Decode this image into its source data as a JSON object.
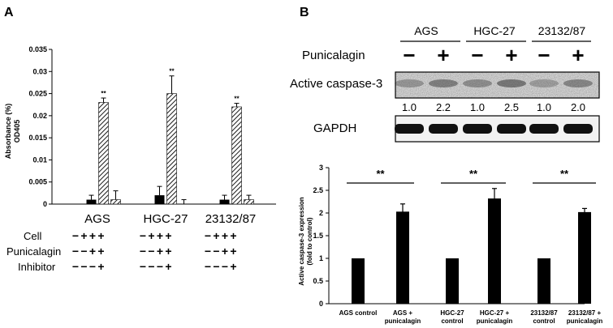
{
  "panels": {
    "a_label": "A",
    "b_label": "B"
  },
  "panel_a": {
    "yaxis": {
      "label_line1": "Absorbance (%)",
      "label_line2": "OD405",
      "ticks": [
        "0",
        "0.005",
        "0.01",
        "0.015",
        "0.02",
        "0.025",
        "0.03",
        "0.035"
      ]
    },
    "row_labels": [
      "Cell",
      "Punicalagin",
      "Inhibitor"
    ],
    "sign_matrix": [
      [
        "−",
        "+",
        "+",
        "+"
      ],
      [
        "−",
        "−",
        "+",
        "+"
      ],
      [
        "−",
        "−",
        "−",
        "+"
      ]
    ]
  },
  "western": {
    "cell_lines": [
      "AGS",
      "HGC-27",
      "23132/87"
    ],
    "treatment_label": "Punicalagin",
    "lane_signs": [
      "−",
      "+",
      "−",
      "+",
      "−",
      "+"
    ],
    "band1_label": "Active caspase-3",
    "band1_values": [
      "1.0",
      "2.2",
      "1.0",
      "2.5",
      "1.0",
      "2.0"
    ],
    "band2_label": "GAPDH"
  },
  "panel_b_chart": {
    "ylabel_line1": "Active caspase-3 expression",
    "ylabel_line2": "(fold to control)",
    "ticks": [
      "0",
      "0.5",
      "1",
      "1.5",
      "2",
      "2.5",
      "3"
    ],
    "xlabels": [
      [
        "AGS control"
      ],
      [
        "AGS +",
        "punicalagin"
      ],
      [
        "HGC-27",
        "control"
      ],
      [
        "HGC-27 +",
        "punicalagin"
      ],
      [
        "23132/87",
        "control"
      ],
      [
        "23132/87 +",
        "punicalagin"
      ]
    ],
    "sig_label": "**"
  },
  "chart_data": [
    {
      "type": "bar",
      "categories": [
        "AGS",
        "HGC-27",
        "23132/87"
      ],
      "ylabel": "Absorbance (%) OD405",
      "ylim": [
        0,
        0.035
      ],
      "yticks": [
        0,
        0.005,
        0.01,
        0.015,
        0.02,
        0.025,
        0.03,
        0.035
      ],
      "series": [
        {
          "values": [
            0.0,
            0.0,
            0.0
          ],
          "errors": [
            0,
            0,
            0
          ],
          "fill": "#000000"
        },
        {
          "values": [
            0.001,
            0.002,
            0.001
          ],
          "errors": [
            0.001,
            0.002,
            0.001
          ],
          "fill": "#000000"
        },
        {
          "values": [
            0.023,
            0.025,
            0.022
          ],
          "errors": [
            0.001,
            0.004,
            0.0008
          ],
          "fill": "hatch"
        },
        {
          "values": [
            0.001,
            0.0,
            0.001
          ],
          "errors": [
            0.002,
            0.001,
            0.001
          ],
          "fill": "hatch"
        }
      ],
      "annotations": [
        "**",
        "**",
        "**"
      ],
      "grid": false
    },
    {
      "type": "bar",
      "categories": [
        "AGS control",
        "AGS + punicalagin",
        "HGC-27 control",
        "HGC-27 + punicalagin",
        "23132/87 control",
        "23132/87 + punicalagin"
      ],
      "values": [
        1.0,
        2.03,
        1.0,
        2.32,
        1.0,
        2.02
      ],
      "errors": [
        0.01,
        0.17,
        0.01,
        0.22,
        0.01,
        0.08
      ],
      "ylabel": "Active caspase-3 expression (fold to control)",
      "ylim": [
        0,
        3
      ],
      "yticks": [
        0,
        0.5,
        1,
        1.5,
        2,
        2.5,
        3
      ],
      "annotations": [
        "**",
        "**",
        "**"
      ],
      "bar_color": "#000000",
      "grid": false
    }
  ]
}
